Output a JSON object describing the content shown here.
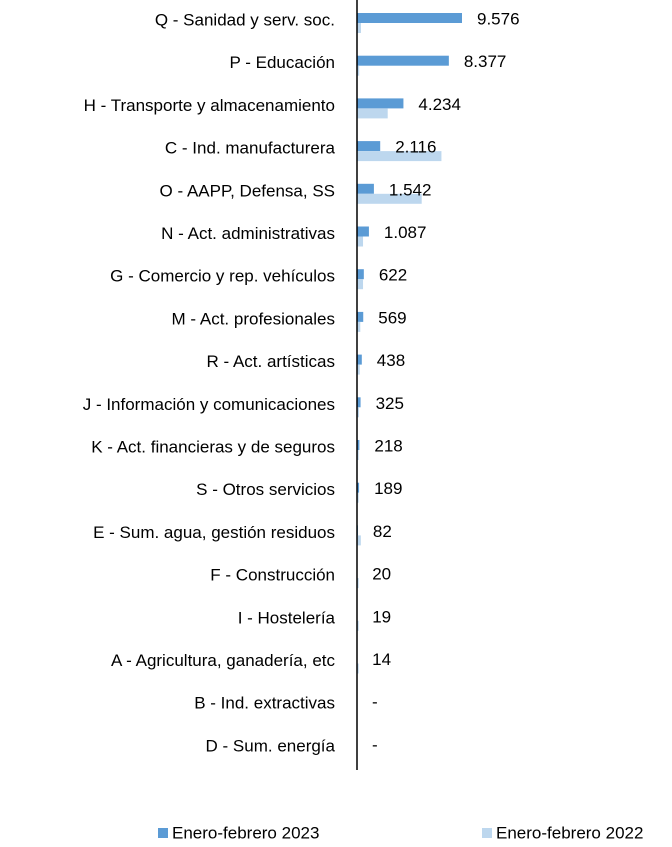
{
  "chart_data": {
    "type": "bar",
    "orientation": "horizontal",
    "categories": [
      "Q - Sanidad y serv. soc.",
      "P - Educación",
      "H - Transporte y almacenamiento",
      "C - Ind. manufacturera",
      "O - AAPP, Defensa, SS",
      "N - Act. administrativas",
      "G - Comercio y rep. vehículos",
      "M - Act. profesionales",
      "R - Act. artísticas",
      "J - Información y comunicaciones",
      "K - Act. financieras y de seguros",
      "S - Otros servicios",
      "E - Sum. agua, gestión residuos",
      "F - Construcción",
      "I - Hostelería",
      "A - Agricultura, ganadería, etc",
      "B - Ind. extractivas",
      "D - Sum. energía"
    ],
    "series": [
      {
        "name": "Enero-febrero 2023",
        "color": "#5b9bd5",
        "values": [
          9576,
          8377,
          4234,
          2116,
          1542,
          1087,
          622,
          569,
          438,
          325,
          218,
          189,
          82,
          20,
          19,
          14,
          0,
          0
        ],
        "value_labels": [
          "9.576",
          "8.377",
          "4.234",
          "2.116",
          "1.542",
          "1.087",
          "622",
          "569",
          "438",
          "325",
          "218",
          "189",
          "82",
          "20",
          "19",
          "14",
          "-",
          "-"
        ]
      },
      {
        "name": "Enero-febrero 2022",
        "color": "#bdd7ee",
        "values": [
          360,
          200,
          2800,
          7700,
          5900,
          550,
          550,
          300,
          250,
          180,
          150,
          150,
          350,
          150,
          150,
          150,
          0,
          0
        ]
      }
    ],
    "legend": "bottom"
  }
}
